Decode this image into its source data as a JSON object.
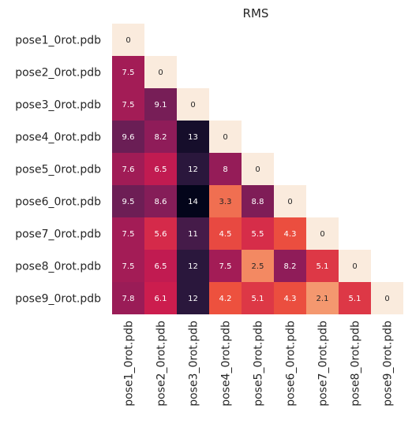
{
  "chart_data": {
    "type": "heatmap",
    "title": "RMS",
    "rows": [
      "pose1_0rot.pdb",
      "pose2_0rot.pdb",
      "pose3_0rot.pdb",
      "pose4_0rot.pdb",
      "pose5_0rot.pdb",
      "pose6_0rot.pdb",
      "pose7_0rot.pdb",
      "pose8_0rot.pdb",
      "pose9_0rot.pdb"
    ],
    "columns": [
      "pose1_0rot.pdb",
      "pose2_0rot.pdb",
      "pose3_0rot.pdb",
      "pose4_0rot.pdb",
      "pose5_0rot.pdb",
      "pose6_0rot.pdb",
      "pose7_0rot.pdb",
      "pose8_0rot.pdb",
      "pose9_0rot.pdb"
    ],
    "mask": "upper-triangle",
    "value_range": [
      0,
      14
    ],
    "colormap": "rocket",
    "colorbar": false,
    "values": [
      [
        "0"
      ],
      [
        "7.5",
        "0"
      ],
      [
        "7.5",
        "9.1",
        "0"
      ],
      [
        "9.6",
        "8.2",
        "13",
        "0"
      ],
      [
        "7.6",
        "6.5",
        "12",
        "8",
        "0"
      ],
      [
        "9.5",
        "8.6",
        "14",
        "3.3",
        "8.8",
        "0"
      ],
      [
        "7.5",
        "5.6",
        "11",
        "4.5",
        "5.5",
        "4.3",
        "0"
      ],
      [
        "7.5",
        "6.5",
        "12",
        "7.5",
        "2.5",
        "8.2",
        "5.1",
        "0"
      ],
      [
        "7.8",
        "6.1",
        "12",
        "4.2",
        "5.1",
        "4.3",
        "2.1",
        "5.1",
        "0"
      ]
    ]
  }
}
